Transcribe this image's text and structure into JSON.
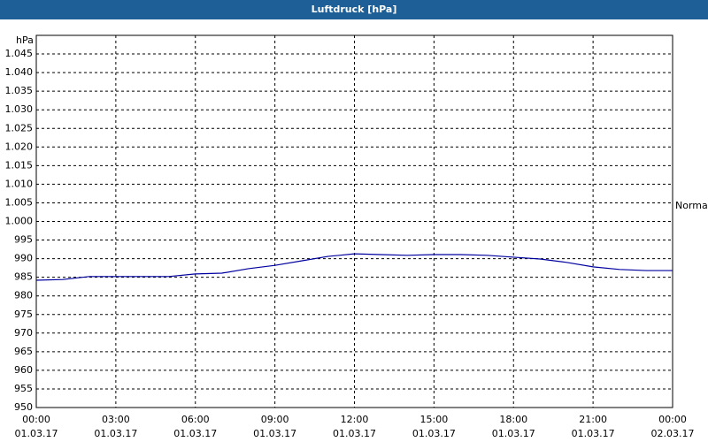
{
  "chart_data": {
    "type": "line",
    "title": "Luftdruck [hPa]",
    "y_label": "hPa",
    "annotation": "Normal",
    "x": [
      0,
      1,
      2,
      3,
      4,
      5,
      6,
      7,
      8,
      9,
      10,
      11,
      12,
      13,
      14,
      15,
      16,
      17,
      18,
      19,
      20,
      21,
      22,
      23,
      24
    ],
    "series": [
      {
        "name": "Luftdruck",
        "color": "#0000a0",
        "values": [
          984.2,
          984.4,
          985.2,
          985.2,
          985.2,
          985.2,
          985.9,
          986.1,
          987.3,
          988.2,
          989.4,
          990.6,
          991.3,
          991.1,
          990.9,
          991.1,
          991.1,
          990.9,
          990.4,
          989.9,
          989.0,
          987.8,
          987.1,
          986.8,
          986.8
        ]
      }
    ],
    "xlim": [
      0,
      24
    ],
    "xticks": [
      {
        "value": 0,
        "label": "00:00"
      },
      {
        "value": 3,
        "label": "03:00"
      },
      {
        "value": 6,
        "label": "06:00"
      },
      {
        "value": 9,
        "label": "09:00"
      },
      {
        "value": 12,
        "label": "12:00"
      },
      {
        "value": 15,
        "label": "15:00"
      },
      {
        "value": 18,
        "label": "18:00"
      },
      {
        "value": 21,
        "label": "21:00"
      },
      {
        "value": 24,
        "label": "00:00"
      }
    ],
    "xtick_dates": [
      "01.03.17",
      "01.03.17",
      "01.03.17",
      "01.03.17",
      "01.03.17",
      "01.03.17",
      "01.03.17",
      "01.03.17",
      "02.03.17"
    ],
    "ylim": [
      950,
      1050
    ],
    "yticks": [
      950,
      955,
      960,
      965,
      970,
      975,
      980,
      985,
      990,
      995,
      {
        "value": 1000,
        "label": "1.000"
      },
      {
        "value": 1005,
        "label": "1.005"
      },
      {
        "value": 1010,
        "label": "1.010"
      },
      {
        "value": 1015,
        "label": "1.015"
      },
      {
        "value": 1020,
        "label": "1.020"
      },
      {
        "value": 1025,
        "label": "1.025"
      },
      {
        "value": 1030,
        "label": "1.030"
      },
      {
        "value": 1035,
        "label": "1.035"
      },
      {
        "value": 1040,
        "label": "1.040"
      },
      {
        "value": 1045,
        "label": "1.045"
      }
    ],
    "grid": true
  }
}
